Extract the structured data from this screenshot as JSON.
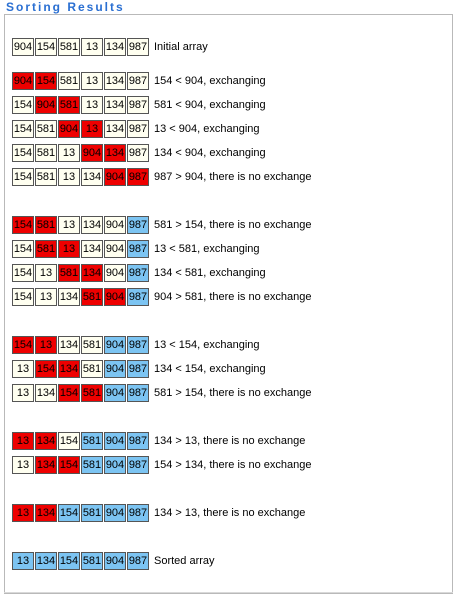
{
  "title": "Sorting Results",
  "colors": {
    "white": "#fffff0",
    "red": "#ee0000",
    "blue": "#7cc4f2",
    "title": "#2a6fd2"
  },
  "rows": [
    {
      "values": [
        "904",
        "154",
        "581",
        "13",
        "134",
        "987"
      ],
      "colors": [
        "w",
        "w",
        "w",
        "w",
        "w",
        "w"
      ],
      "message": "Initial array"
    },
    {
      "values": [
        "904",
        "154",
        "581",
        "13",
        "134",
        "987"
      ],
      "colors": [
        "r",
        "r",
        "w",
        "w",
        "w",
        "w"
      ],
      "message": "154 < 904, exchanging"
    },
    {
      "values": [
        "154",
        "904",
        "581",
        "13",
        "134",
        "987"
      ],
      "colors": [
        "w",
        "r",
        "r",
        "w",
        "w",
        "w"
      ],
      "message": "581 < 904, exchanging"
    },
    {
      "values": [
        "154",
        "581",
        "904",
        "13",
        "134",
        "987"
      ],
      "colors": [
        "w",
        "w",
        "r",
        "r",
        "w",
        "w"
      ],
      "message": "13 < 904, exchanging"
    },
    {
      "values": [
        "154",
        "581",
        "13",
        "904",
        "134",
        "987"
      ],
      "colors": [
        "w",
        "w",
        "w",
        "r",
        "r",
        "w"
      ],
      "message": "134 < 904, exchanging"
    },
    {
      "values": [
        "154",
        "581",
        "13",
        "134",
        "904",
        "987"
      ],
      "colors": [
        "w",
        "w",
        "w",
        "w",
        "r",
        "r"
      ],
      "message": "987 > 904, there is no exchange"
    },
    {
      "values": [
        "154",
        "581",
        "13",
        "134",
        "904",
        "987"
      ],
      "colors": [
        "r",
        "r",
        "w",
        "w",
        "w",
        "b"
      ],
      "message": "581 > 154, there is no exchange"
    },
    {
      "values": [
        "154",
        "581",
        "13",
        "134",
        "904",
        "987"
      ],
      "colors": [
        "w",
        "r",
        "r",
        "w",
        "w",
        "b"
      ],
      "message": "13 < 581, exchanging"
    },
    {
      "values": [
        "154",
        "13",
        "581",
        "134",
        "904",
        "987"
      ],
      "colors": [
        "w",
        "w",
        "r",
        "r",
        "w",
        "b"
      ],
      "message": "134 < 581, exchanging"
    },
    {
      "values": [
        "154",
        "13",
        "134",
        "581",
        "904",
        "987"
      ],
      "colors": [
        "w",
        "w",
        "w",
        "r",
        "r",
        "b"
      ],
      "message": "904 > 581, there is no exchange"
    },
    {
      "values": [
        "154",
        "13",
        "134",
        "581",
        "904",
        "987"
      ],
      "colors": [
        "r",
        "r",
        "w",
        "w",
        "b",
        "b"
      ],
      "message": "13 < 154, exchanging"
    },
    {
      "values": [
        "13",
        "154",
        "134",
        "581",
        "904",
        "987"
      ],
      "colors": [
        "w",
        "r",
        "r",
        "w",
        "b",
        "b"
      ],
      "message": "134 < 154, exchanging"
    },
    {
      "values": [
        "13",
        "134",
        "154",
        "581",
        "904",
        "987"
      ],
      "colors": [
        "w",
        "w",
        "r",
        "r",
        "b",
        "b"
      ],
      "message": "581 > 154, there is no exchange"
    },
    {
      "values": [
        "13",
        "134",
        "154",
        "581",
        "904",
        "987"
      ],
      "colors": [
        "r",
        "r",
        "w",
        "b",
        "b",
        "b"
      ],
      "message": "134 > 13, there is no exchange"
    },
    {
      "values": [
        "13",
        "134",
        "154",
        "581",
        "904",
        "987"
      ],
      "colors": [
        "w",
        "r",
        "r",
        "b",
        "b",
        "b"
      ],
      "message": "154 > 134, there is no exchange"
    },
    {
      "values": [
        "13",
        "134",
        "154",
        "581",
        "904",
        "987"
      ],
      "colors": [
        "r",
        "r",
        "b",
        "b",
        "b",
        "b"
      ],
      "message": "134 > 13, there is no exchange"
    },
    {
      "values": [
        "13",
        "134",
        "154",
        "581",
        "904",
        "987"
      ],
      "colors": [
        "b",
        "b",
        "b",
        "b",
        "b",
        "b"
      ],
      "message": "Sorted array"
    }
  ]
}
